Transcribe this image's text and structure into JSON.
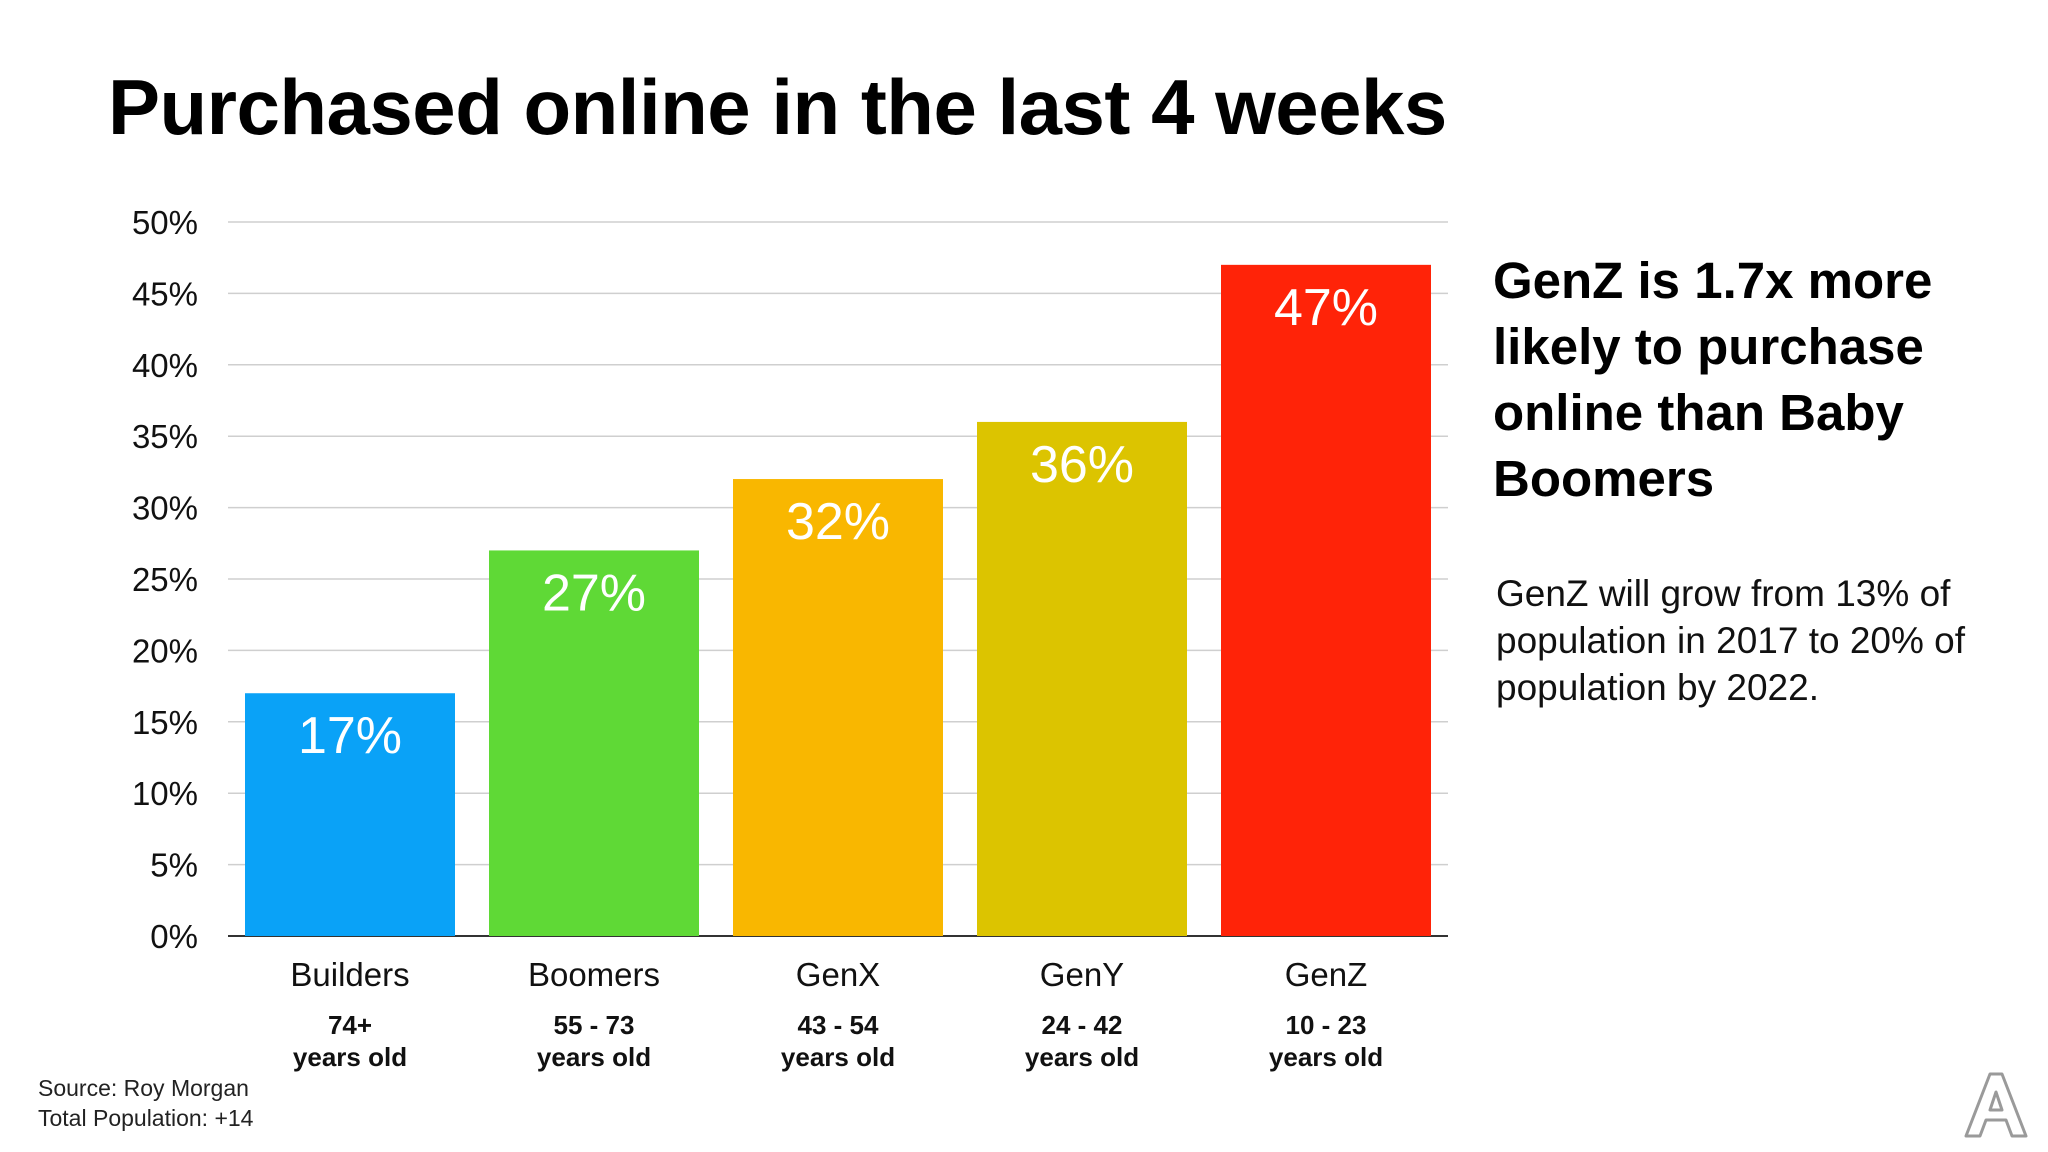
{
  "title": "Purchased online in the last 4 weeks",
  "headline": "GenZ is 1.7x more likely to purchase online than Baby Boomers",
  "subtext": "GenZ will grow from 13% of population in 2017 to 20% of population by 2022.",
  "source": {
    "line1": "Source: Roy Morgan",
    "line2": "Total Population: +14"
  },
  "logo": "A",
  "chart_data": {
    "type": "bar",
    "categories": [
      "Builders",
      "Boomers",
      "GenX",
      "GenY",
      "GenZ"
    ],
    "age_ranges": [
      "74+",
      "55 - 73",
      "43 - 54",
      "24 - 42",
      "10 - 23"
    ],
    "age_suffix": "years old",
    "values": [
      17,
      27,
      32,
      36,
      47
    ],
    "value_labels": [
      "17%",
      "27%",
      "32%",
      "36%",
      "47%"
    ],
    "colors": [
      "#0aa2f7",
      "#5fd936",
      "#f9b700",
      "#dcc400",
      "#ff2308"
    ],
    "yticks": [
      "0%",
      "5%",
      "10%",
      "15%",
      "20%",
      "25%",
      "30%",
      "35%",
      "40%",
      "45%",
      "50%"
    ],
    "ylim": [
      0,
      50
    ],
    "grid": true
  }
}
